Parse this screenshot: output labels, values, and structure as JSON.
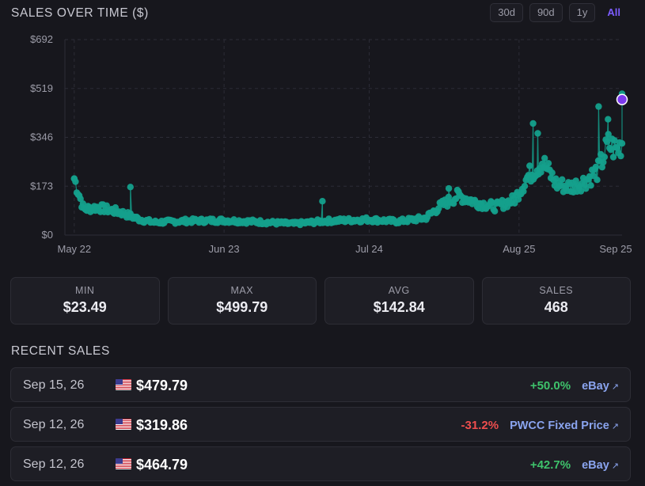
{
  "header": {
    "title": "SALES OVER TIME ($)",
    "ranges": [
      {
        "label": "30d",
        "active": false
      },
      {
        "label": "90d",
        "active": false
      },
      {
        "label": "1y",
        "active": false
      },
      {
        "label": "All",
        "active": true
      }
    ]
  },
  "colors": {
    "background": "#17171d",
    "series": "#14a08c",
    "highlight": "#7c3aed",
    "positive": "#3ec26b",
    "negative": "#ef4e4e",
    "link": "#8aa4ef"
  },
  "chart_data": {
    "type": "scatter",
    "title": "SALES OVER TIME ($)",
    "x_start": "2026-05-20",
    "x_end": "2026-09-16",
    "ylim": [
      0,
      692
    ],
    "y_ticks": [
      {
        "value": 0,
        "label": "$0"
      },
      {
        "value": 173,
        "label": "$173"
      },
      {
        "value": 346,
        "label": "$346"
      },
      {
        "value": 519,
        "label": "$519"
      },
      {
        "value": 692,
        "label": "$692"
      }
    ],
    "x_ticks": [
      {
        "date": "2026-05-22",
        "label": "May 22"
      },
      {
        "date": "2026-06-23",
        "label": "Jun 23"
      },
      {
        "date": "2026-07-24",
        "label": "Jul 24"
      },
      {
        "date": "2026-08-25",
        "label": "Aug 25"
      },
      {
        "date": "2026-09-25",
        "label": "Sep 25"
      }
    ],
    "grid": true,
    "trend_points": [
      {
        "date": "2026-05-20",
        "value": 92
      },
      {
        "date": "2026-05-22",
        "value": 200
      },
      {
        "date": "2026-05-24",
        "value": 92
      },
      {
        "date": "2026-05-27",
        "value": 98
      },
      {
        "date": "2026-06-01",
        "value": 80
      },
      {
        "date": "2026-06-05",
        "value": 55
      },
      {
        "date": "2026-06-08",
        "value": 45
      },
      {
        "date": "2026-06-15",
        "value": 50
      },
      {
        "date": "2026-06-23",
        "value": 52
      },
      {
        "date": "2026-07-01",
        "value": 46
      },
      {
        "date": "2026-07-08",
        "value": 40
      },
      {
        "date": "2026-07-15",
        "value": 50
      },
      {
        "date": "2026-07-24",
        "value": 55
      },
      {
        "date": "2026-07-30",
        "value": 48
      },
      {
        "date": "2026-08-05",
        "value": 60
      },
      {
        "date": "2026-08-08",
        "value": 100
      },
      {
        "date": "2026-08-12",
        "value": 140
      },
      {
        "date": "2026-08-16",
        "value": 115
      },
      {
        "date": "2026-08-20",
        "value": 100
      },
      {
        "date": "2026-08-24",
        "value": 125
      },
      {
        "date": "2026-08-27",
        "value": 210
      },
      {
        "date": "2026-08-30",
        "value": 260
      },
      {
        "date": "2026-09-02",
        "value": 180
      },
      {
        "date": "2026-09-05",
        "value": 170
      },
      {
        "date": "2026-09-08",
        "value": 190
      },
      {
        "date": "2026-09-11",
        "value": 230
      },
      {
        "date": "2026-09-13",
        "value": 320
      },
      {
        "date": "2026-09-15",
        "value": 300
      },
      {
        "date": "2026-09-16",
        "value": 330
      }
    ],
    "spikes": [
      {
        "date": "2026-05-22",
        "value": 200
      },
      {
        "date": "2026-06-03",
        "value": 170
      },
      {
        "date": "2026-07-14",
        "value": 120
      },
      {
        "date": "2026-08-10",
        "value": 165
      },
      {
        "date": "2026-08-28",
        "value": 395
      },
      {
        "date": "2026-08-29",
        "value": 360
      },
      {
        "date": "2026-09-11",
        "value": 455
      },
      {
        "date": "2026-09-13",
        "value": 410
      },
      {
        "date": "2026-09-16",
        "value": 500
      }
    ],
    "highlight_point": {
      "date": "2026-09-16",
      "value": 479.79
    }
  },
  "stats": [
    {
      "label": "MIN",
      "value": "$23.49"
    },
    {
      "label": "MAX",
      "value": "$499.79"
    },
    {
      "label": "AVG",
      "value": "$142.84"
    },
    {
      "label": "SALES",
      "value": "468"
    }
  ],
  "recent": {
    "title": "RECENT SALES",
    "items": [
      {
        "date": "Sep 15, 26",
        "flag": "us-flag-icon",
        "price": "$479.79",
        "change": "+50.0%",
        "direction": "up",
        "source": "eBay",
        "icon": "external-link-icon"
      },
      {
        "date": "Sep 12, 26",
        "flag": "us-flag-icon",
        "price": "$319.86",
        "change": "-31.2%",
        "direction": "down",
        "source": "PWCC Fixed Price",
        "icon": "external-link-icon"
      },
      {
        "date": "Sep 12, 26",
        "flag": "us-flag-icon",
        "price": "$464.79",
        "change": "+42.7%",
        "direction": "up",
        "source": "eBay",
        "icon": "external-link-icon"
      }
    ]
  }
}
